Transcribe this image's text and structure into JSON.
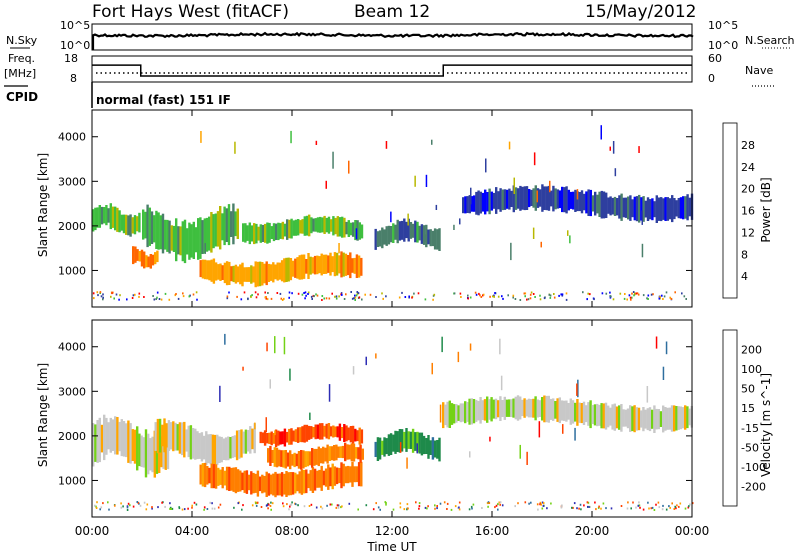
{
  "header": {
    "station": "Fort Hays West (fitACF)",
    "beam": "Beam 12",
    "date": "15/May/2012"
  },
  "noise_panel": {
    "left_label": "N.Sky",
    "right_label": "N.Search",
    "left_ticks": [
      "10^5",
      "10^0"
    ],
    "right_ticks": [
      "10^5",
      "10^0"
    ]
  },
  "freq_panel": {
    "left_label_1": "Freq.",
    "left_label_2": "[MHz]",
    "right_label": "Nave",
    "left_ticks": [
      "18",
      "8"
    ],
    "right_ticks": [
      "60",
      "0"
    ],
    "step_levels_mhz": {
      "low": 10.3,
      "high": 14.5
    },
    "switch_times_hours": [
      1.95,
      14.05
    ]
  },
  "cpid": {
    "label": "CPID",
    "mode": "normal (fast) 151 IF"
  },
  "x_axis": {
    "label": "Time UT",
    "ticks": [
      "00:00",
      "04:00",
      "08:00",
      "12:00",
      "16:00",
      "20:00",
      "00:00"
    ],
    "range_hours": [
      0,
      24
    ]
  },
  "colors": {
    "power": [
      "#0000ff",
      "#2e3f9f",
      "#4a7f6a",
      "#3fbf3f",
      "#b8b800",
      "#ffa500",
      "#ff6600",
      "#ff0000"
    ],
    "velocity": [
      "#2d2db4",
      "#2e6e9e",
      "#1e8a4a",
      "#73d216",
      "#c8c8c8",
      "#ffa500",
      "#ff7f00",
      "#ff4400",
      "#ff0000"
    ]
  },
  "chart_data": [
    {
      "type": "heatmap",
      "title": "Power",
      "ylabel": "Slant Range [km]",
      "xlabel": "",
      "yticks": [
        "1000",
        "2000",
        "3000",
        "4000"
      ],
      "ylim": [
        180,
        4600
      ],
      "xlim": [
        0,
        24
      ],
      "colorbar": {
        "label": "Power [dB]",
        "ticks": [
          "4",
          "8",
          "12",
          "16",
          "20",
          "24",
          "28"
        ]
      },
      "regions": [
        {
          "time": [
            0.0,
            1.9
          ],
          "range": [
            1800,
            2450
          ],
          "value_db": 15
        },
        {
          "time": [
            1.6,
            2.6
          ],
          "range": [
            1050,
            1500
          ],
          "value_db": 27
        },
        {
          "time": [
            2.0,
            5.8
          ],
          "range": [
            1300,
            2400
          ],
          "value_db": 12
        },
        {
          "time": [
            4.3,
            10.8
          ],
          "range": [
            700,
            1350
          ],
          "value_db": 20
        },
        {
          "time": [
            6.0,
            10.8
          ],
          "range": [
            1650,
            2200
          ],
          "value_db": 14
        },
        {
          "time": [
            11.3,
            13.9
          ],
          "range": [
            1500,
            2100
          ],
          "value_db": 10
        },
        {
          "time": [
            14.8,
            24.0
          ],
          "range": [
            2150,
            2850
          ],
          "value_db": 7
        }
      ]
    },
    {
      "type": "heatmap",
      "title": "Velocity",
      "ylabel": "Slant Range [km]",
      "xlabel": "Time UT",
      "yticks": [
        "1000",
        "2000",
        "3000",
        "4000"
      ],
      "ylim": [
        180,
        4600
      ],
      "xlim": [
        0,
        24
      ],
      "colorbar": {
        "label": "Velocity [m s^-1]",
        "ticks": [
          "200",
          "100",
          "50",
          "15",
          "-15",
          "-50",
          "-100",
          "-200"
        ]
      },
      "regions": [
        {
          "time": [
            0.0,
            3.0
          ],
          "range": [
            1200,
            2400
          ],
          "value_ms": 0
        },
        {
          "time": [
            2.5,
            6.5
          ],
          "range": [
            1400,
            2300
          ],
          "value_ms": 0
        },
        {
          "time": [
            4.3,
            10.8
          ],
          "range": [
            700,
            1350
          ],
          "value_ms": -80
        },
        {
          "time": [
            7.0,
            10.8
          ],
          "range": [
            1300,
            1800
          ],
          "value_ms": -80
        },
        {
          "time": [
            6.7,
            10.8
          ],
          "range": [
            1800,
            2250
          ],
          "value_ms": -200
        },
        {
          "time": [
            11.3,
            13.9
          ],
          "range": [
            1500,
            2100
          ],
          "value_ms": 60
        },
        {
          "time": [
            14.0,
            24.0
          ],
          "range": [
            2150,
            2850
          ],
          "value_ms": 0
        }
      ]
    }
  ]
}
